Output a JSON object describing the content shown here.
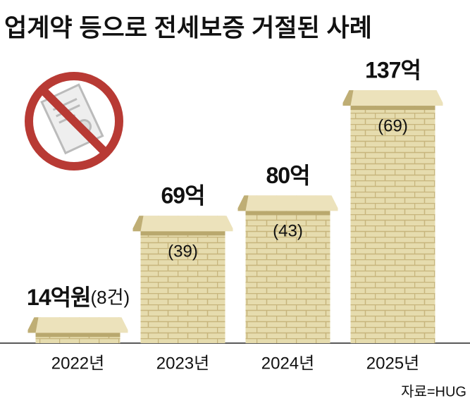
{
  "chart_data": {
    "type": "bar",
    "title": "업계약 등으로 전세보증 거절된 사례",
    "categories": [
      "2022년",
      "2023년",
      "2024년",
      "2025년"
    ],
    "values": [
      14,
      69,
      80,
      137
    ],
    "value_labels": [
      "14억원",
      "69억",
      "80억",
      "137억"
    ],
    "counts": {
      "values": [
        8,
        39,
        43,
        69
      ],
      "value_labels": [
        "(8건)",
        "(39)",
        "(43)",
        "(69)"
      ]
    },
    "color": "#e6dcae",
    "source": "자료=HUG"
  }
}
